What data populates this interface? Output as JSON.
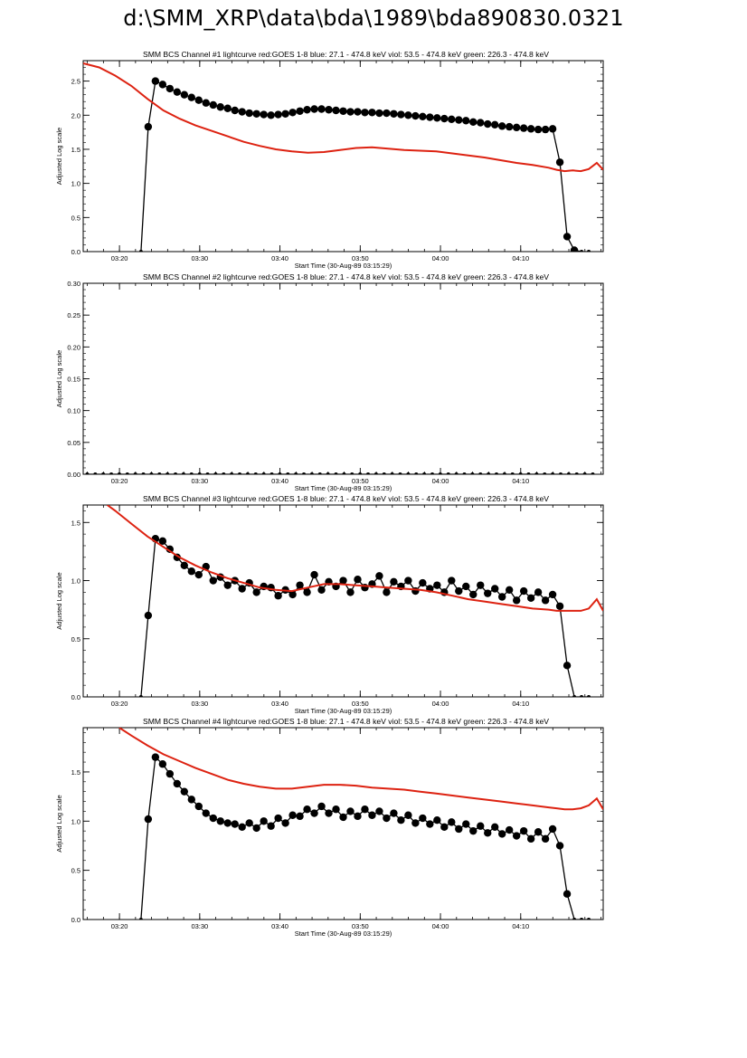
{
  "page_title": "d:\\SMM_XRP\\data\\bda\\1989\\bda890830.0321",
  "colors": {
    "goes": "#dd2211",
    "bcs": "#000000"
  },
  "chart_data": [
    {
      "type": "line",
      "title": "SMM BCS Channel #1 lightcurve  red:GOES 1-8  blue: 27.1 - 474.8 keV  viol: 53.5 - 474.8 keV  green: 226.3 - 474.8 keV",
      "xlabel": "Start Time (30-Aug-89 03:15:29)",
      "ylabel": "Adjusted Log scale",
      "x_unit": "minutes after 03:15:29",
      "xlim": [
        0.0,
        64.8
      ],
      "ylim": [
        0.0,
        2.8
      ],
      "x_ticks": [
        4.52,
        14.52,
        24.52,
        34.52,
        44.52,
        54.52
      ],
      "x_tick_labels": [
        "03:20",
        "03:30",
        "03:40",
        "03:50",
        "04:00",
        "04:10"
      ],
      "y_ticks": [
        0.0,
        0.5,
        1.0,
        1.5,
        2.0,
        2.5
      ],
      "y_tick_labels": [
        "0.0",
        "0.5",
        "1.0",
        "1.5",
        "2.0",
        "2.5"
      ],
      "series": [
        {
          "color": "#000000",
          "marker": "circle",
          "x": [
            7.2,
            8.1,
            9.0,
            9.9,
            10.8,
            11.7,
            12.6,
            13.5,
            14.4,
            15.3,
            16.2,
            17.1,
            18.0,
            18.9,
            19.8,
            20.7,
            21.6,
            22.5,
            23.4,
            24.3,
            25.2,
            26.1,
            27.0,
            27.9,
            28.8,
            29.7,
            30.6,
            31.5,
            32.4,
            33.3,
            34.2,
            35.1,
            36.0,
            36.9,
            37.8,
            38.7,
            39.6,
            40.5,
            41.4,
            42.3,
            43.2,
            44.1,
            45.0,
            45.9,
            46.8,
            47.7,
            48.6,
            49.5,
            50.4,
            51.3,
            52.2,
            53.1,
            54.0,
            54.9,
            55.8,
            56.7,
            57.6,
            58.5,
            59.4,
            60.3,
            61.2,
            62.1,
            63.0
          ],
          "y": [
            0.0,
            1.83,
            2.5,
            2.45,
            2.39,
            2.34,
            2.3,
            2.26,
            2.22,
            2.18,
            2.15,
            2.12,
            2.1,
            2.07,
            2.05,
            2.03,
            2.02,
            2.01,
            2.0,
            2.01,
            2.02,
            2.04,
            2.06,
            2.08,
            2.09,
            2.09,
            2.08,
            2.07,
            2.06,
            2.05,
            2.05,
            2.04,
            2.04,
            2.03,
            2.03,
            2.02,
            2.01,
            2.0,
            1.99,
            1.98,
            1.97,
            1.96,
            1.95,
            1.94,
            1.93,
            1.92,
            1.9,
            1.89,
            1.87,
            1.86,
            1.84,
            1.83,
            1.82,
            1.81,
            1.8,
            1.79,
            1.79,
            1.8,
            1.31,
            0.22,
            0.02,
            0.0,
            0.0
          ]
        },
        {
          "color": "#dd2211",
          "marker": "none",
          "x": [
            0.0,
            2.0,
            4.0,
            6.0,
            8.0,
            10.0,
            12.0,
            14.0,
            16.0,
            18.0,
            20.0,
            22.0,
            24.0,
            26.0,
            28.0,
            30.0,
            32.0,
            34.0,
            36.0,
            38.0,
            40.0,
            42.0,
            44.0,
            46.0,
            48.0,
            50.0,
            52.0,
            54.0,
            56.0,
            58.0,
            59.0,
            60.0,
            61.0,
            62.0,
            63.0,
            64.0,
            64.8
          ],
          "y": [
            2.76,
            2.7,
            2.58,
            2.43,
            2.24,
            2.07,
            1.95,
            1.85,
            1.77,
            1.69,
            1.61,
            1.55,
            1.5,
            1.47,
            1.45,
            1.46,
            1.49,
            1.52,
            1.53,
            1.51,
            1.49,
            1.48,
            1.47,
            1.44,
            1.41,
            1.38,
            1.34,
            1.3,
            1.27,
            1.23,
            1.2,
            1.18,
            1.19,
            1.18,
            1.21,
            1.3,
            1.2
          ]
        }
      ]
    },
    {
      "type": "line",
      "title": "SMM BCS Channel #2 lightcurve  red:GOES 1-8  blue: 27.1 - 474.8 keV  viol: 53.5 - 474.8 keV  green: 226.3 - 474.8 keV",
      "xlabel": "Start Time (30-Aug-89 03:15:29)",
      "ylabel": "Adjusted Log scale",
      "x_unit": "minutes after 03:15:29",
      "xlim": [
        0.0,
        64.8
      ],
      "ylim": [
        0.0,
        0.3
      ],
      "x_ticks": [
        4.52,
        14.52,
        24.52,
        34.52,
        44.52,
        54.52
      ],
      "x_tick_labels": [
        "03:20",
        "03:30",
        "03:40",
        "03:50",
        "04:00",
        "04:10"
      ],
      "y_ticks": [
        0.0,
        0.05,
        0.1,
        0.15,
        0.2,
        0.25,
        0.3
      ],
      "y_tick_labels": [
        "0.00",
        "0.05",
        "0.10",
        "0.15",
        "0.20",
        "0.25",
        "0.30"
      ],
      "series": [
        {
          "color": "#000000",
          "marker": "circle",
          "x": [
            0.5,
            1.5,
            2.5,
            3.5,
            4.5,
            5.5,
            6.5,
            7.5,
            8.5,
            9.5,
            10.5,
            11.5,
            12.5,
            13.5,
            14.5,
            15.5,
            16.5,
            17.5,
            18.5,
            19.5,
            20.5,
            21.5,
            22.5,
            23.5,
            24.5,
            25.5,
            26.5,
            27.5,
            28.5,
            29.5,
            30.5,
            31.5,
            32.5,
            33.5,
            34.5,
            35.5,
            36.5,
            37.5,
            38.5,
            39.5,
            40.5,
            41.5,
            42.5,
            43.5,
            44.5,
            45.5,
            46.5,
            47.5,
            48.5,
            49.5,
            50.5,
            51.5,
            52.5,
            53.5,
            54.5,
            55.5,
            56.5,
            57.5,
            58.5,
            59.5,
            60.5,
            61.5,
            62.5,
            63.5
          ],
          "y": [
            0.0,
            0.0,
            0.0,
            0.0,
            0.0,
            0.0,
            0.0,
            0.0,
            0.0,
            0.0,
            0.0,
            0.0,
            0.0,
            0.0,
            0.0,
            0.0,
            0.0,
            0.0,
            0.0,
            0.0,
            0.0,
            0.0,
            0.0,
            0.0,
            0.0,
            0.0,
            0.0,
            0.0,
            0.0,
            0.0,
            0.0,
            0.0,
            0.0,
            0.0,
            0.0,
            0.0,
            0.0,
            0.0,
            0.0,
            0.0,
            0.0,
            0.0,
            0.0,
            0.0,
            0.0,
            0.0,
            0.0,
            0.0,
            0.0,
            0.0,
            0.0,
            0.0,
            0.0,
            0.0,
            0.0,
            0.0,
            0.0,
            0.0,
            0.0,
            0.0,
            0.0,
            0.0,
            0.0,
            0.0
          ]
        }
      ]
    },
    {
      "type": "line",
      "title": "SMM BCS Channel #3 lightcurve  red:GOES 1-8  blue: 27.1 - 474.8 keV  viol: 53.5 - 474.8 keV  green: 226.3 - 474.8 keV",
      "xlabel": "Start Time (30-Aug-89 03:15:29)",
      "ylabel": "Adjusted Log scale",
      "x_unit": "minutes after 03:15:29",
      "xlim": [
        0.0,
        64.8
      ],
      "ylim": [
        0.0,
        1.65
      ],
      "x_ticks": [
        4.52,
        14.52,
        24.52,
        34.52,
        44.52,
        54.52
      ],
      "x_tick_labels": [
        "03:20",
        "03:30",
        "03:40",
        "03:50",
        "04:00",
        "04:10"
      ],
      "y_ticks": [
        0.0,
        0.5,
        1.0,
        1.5
      ],
      "y_tick_labels": [
        "0.0",
        "0.5",
        "1.0",
        "1.5"
      ],
      "series": [
        {
          "color": "#000000",
          "marker": "circle",
          "x": [
            7.2,
            8.1,
            9.0,
            9.9,
            10.8,
            11.7,
            12.6,
            13.5,
            14.4,
            15.3,
            16.2,
            17.1,
            18.0,
            18.9,
            19.8,
            20.7,
            21.6,
            22.5,
            23.4,
            24.3,
            25.2,
            26.1,
            27.0,
            27.9,
            28.8,
            29.7,
            30.6,
            31.5,
            32.4,
            33.3,
            34.2,
            35.1,
            36.0,
            36.9,
            37.8,
            38.7,
            39.6,
            40.5,
            41.4,
            42.3,
            43.2,
            44.1,
            45.0,
            45.9,
            46.8,
            47.7,
            48.6,
            49.5,
            50.4,
            51.3,
            52.2,
            53.1,
            54.0,
            54.9,
            55.8,
            56.7,
            57.6,
            58.5,
            59.4,
            60.3,
            61.2,
            62.1,
            63.0
          ],
          "y": [
            0.0,
            0.7,
            1.36,
            1.34,
            1.27,
            1.2,
            1.13,
            1.08,
            1.05,
            1.12,
            1.0,
            1.03,
            0.96,
            1.0,
            0.93,
            0.98,
            0.9,
            0.95,
            0.94,
            0.87,
            0.92,
            0.88,
            0.96,
            0.9,
            1.05,
            0.92,
            0.99,
            0.95,
            1.0,
            0.9,
            1.01,
            0.94,
            0.97,
            1.04,
            0.9,
            0.99,
            0.95,
            1.0,
            0.91,
            0.98,
            0.93,
            0.96,
            0.9,
            1.0,
            0.91,
            0.95,
            0.88,
            0.96,
            0.89,
            0.93,
            0.86,
            0.92,
            0.83,
            0.91,
            0.85,
            0.9,
            0.83,
            0.88,
            0.78,
            0.27,
            0.0,
            0.0,
            0.0
          ]
        },
        {
          "color": "#dd2211",
          "marker": "none",
          "x": [
            3.0,
            4.0,
            6.0,
            8.0,
            10.0,
            12.0,
            14.0,
            16.0,
            18.0,
            20.0,
            22.0,
            24.0,
            26.0,
            28.0,
            30.0,
            32.0,
            34.0,
            36.0,
            38.0,
            40.0,
            42.0,
            44.0,
            46.0,
            48.0,
            50.0,
            52.0,
            54.0,
            56.0,
            58.0,
            59.0,
            60.0,
            61.0,
            62.0,
            63.0,
            64.0,
            64.8
          ],
          "y": [
            1.65,
            1.6,
            1.49,
            1.38,
            1.29,
            1.2,
            1.13,
            1.07,
            1.02,
            0.98,
            0.94,
            0.92,
            0.91,
            0.94,
            0.97,
            0.97,
            0.96,
            0.95,
            0.94,
            0.93,
            0.92,
            0.9,
            0.87,
            0.84,
            0.82,
            0.8,
            0.78,
            0.76,
            0.75,
            0.74,
            0.74,
            0.74,
            0.74,
            0.76,
            0.84,
            0.74
          ]
        }
      ]
    },
    {
      "type": "line",
      "title": "SMM BCS Channel #4 lightcurve  red:GOES 1-8  blue: 27.1 - 474.8 keV  viol: 53.5 - 474.8 keV  green: 226.3 - 474.8 keV",
      "xlabel": "Start Time (30-Aug-89 03:15:29)",
      "ylabel": "Adjusted Log scale",
      "x_unit": "minutes after 03:15:29",
      "xlim": [
        0.0,
        64.8
      ],
      "ylim": [
        0.0,
        1.95
      ],
      "x_ticks": [
        4.52,
        14.52,
        24.52,
        34.52,
        44.52,
        54.52
      ],
      "x_tick_labels": [
        "03:20",
        "03:30",
        "03:40",
        "03:50",
        "04:00",
        "04:10"
      ],
      "y_ticks": [
        0.0,
        0.5,
        1.0,
        1.5
      ],
      "y_tick_labels": [
        "0.0",
        "0.5",
        "1.0",
        "1.5"
      ],
      "series": [
        {
          "color": "#000000",
          "marker": "circle",
          "x": [
            7.2,
            8.1,
            9.0,
            9.9,
            10.8,
            11.7,
            12.6,
            13.5,
            14.4,
            15.3,
            16.2,
            17.1,
            18.0,
            18.9,
            19.8,
            20.7,
            21.6,
            22.5,
            23.4,
            24.3,
            25.2,
            26.1,
            27.0,
            27.9,
            28.8,
            29.7,
            30.6,
            31.5,
            32.4,
            33.3,
            34.2,
            35.1,
            36.0,
            36.9,
            37.8,
            38.7,
            39.6,
            40.5,
            41.4,
            42.3,
            43.2,
            44.1,
            45.0,
            45.9,
            46.8,
            47.7,
            48.6,
            49.5,
            50.4,
            51.3,
            52.2,
            53.1,
            54.0,
            54.9,
            55.8,
            56.7,
            57.6,
            58.5,
            59.4,
            60.3,
            61.2,
            62.1,
            63.0
          ],
          "y": [
            0.0,
            1.02,
            1.65,
            1.58,
            1.48,
            1.38,
            1.3,
            1.22,
            1.15,
            1.08,
            1.03,
            1.0,
            0.98,
            0.97,
            0.94,
            0.98,
            0.93,
            1.0,
            0.95,
            1.03,
            0.98,
            1.06,
            1.05,
            1.12,
            1.08,
            1.15,
            1.08,
            1.12,
            1.04,
            1.1,
            1.05,
            1.12,
            1.06,
            1.1,
            1.03,
            1.08,
            1.01,
            1.06,
            0.98,
            1.03,
            0.97,
            1.01,
            0.94,
            0.99,
            0.92,
            0.97,
            0.9,
            0.95,
            0.88,
            0.94,
            0.87,
            0.91,
            0.85,
            0.9,
            0.82,
            0.89,
            0.82,
            0.92,
            0.75,
            0.26,
            0.0,
            0.0,
            0.0
          ]
        },
        {
          "color": "#dd2211",
          "marker": "none",
          "x": [
            4.5,
            6.0,
            8.0,
            10.0,
            12.0,
            14.0,
            16.0,
            18.0,
            20.0,
            22.0,
            24.0,
            26.0,
            28.0,
            30.0,
            32.0,
            34.0,
            36.0,
            38.0,
            40.0,
            42.0,
            44.0,
            46.0,
            48.0,
            50.0,
            52.0,
            54.0,
            56.0,
            58.0,
            59.0,
            60.0,
            61.0,
            62.0,
            63.0,
            64.0,
            64.8
          ],
          "y": [
            1.95,
            1.87,
            1.77,
            1.68,
            1.61,
            1.54,
            1.48,
            1.42,
            1.38,
            1.35,
            1.33,
            1.33,
            1.35,
            1.37,
            1.37,
            1.36,
            1.34,
            1.33,
            1.32,
            1.3,
            1.28,
            1.26,
            1.24,
            1.22,
            1.2,
            1.18,
            1.16,
            1.14,
            1.13,
            1.12,
            1.12,
            1.13,
            1.16,
            1.23,
            1.12
          ]
        }
      ]
    }
  ]
}
